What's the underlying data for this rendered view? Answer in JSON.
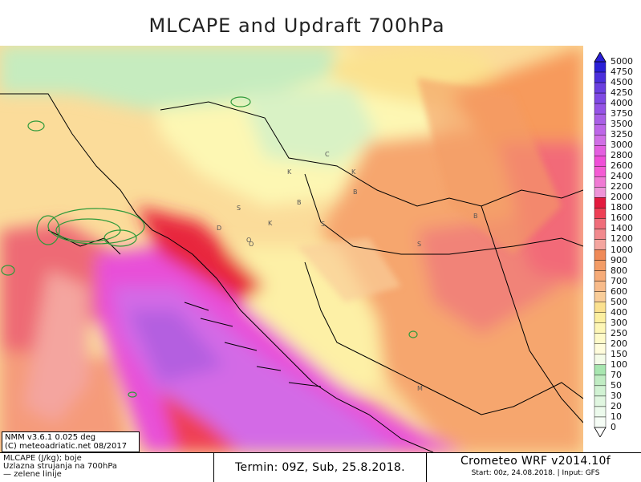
{
  "title": "MLCAPE and Updraft 700hPa",
  "model_box": {
    "line1": "NMM v3.6.1 0.025 deg",
    "line2": "(C) meteoadriatic.net 08/2017"
  },
  "legend_text": {
    "line1": "MLCAPE (J/kg); boje",
    "line2": "Uzlazna strujanja na 700hPa",
    "line3": "— zelene linije"
  },
  "termin": "Termin: 09Z, Sub, 25.8.2018.",
  "brand": {
    "name": "Crometeo WRF v2014.10f",
    "start": "Start: 00z, 24.08.2018. | Input: GFS"
  },
  "colorbar": {
    "labels": [
      "5000",
      "4750",
      "4500",
      "4250",
      "4000",
      "3750",
      "3500",
      "3250",
      "3000",
      "2800",
      "2600",
      "2400",
      "2200",
      "2000",
      "1800",
      "1600",
      "1400",
      "1200",
      "1000",
      "900",
      "800",
      "700",
      "600",
      "500",
      "400",
      "300",
      "250",
      "200",
      "150",
      "100",
      "70",
      "50",
      "30",
      "20",
      "10",
      "0"
    ],
    "colors": [
      "#2a1fd6",
      "#4b2fdc",
      "#6a3fe0",
      "#7f49e4",
      "#9553e6",
      "#a95fe6",
      "#bd66e8",
      "#d06fe6",
      "#e35fe0",
      "#ef4fd8",
      "#f45bd4",
      "#f07ad4",
      "#ee94d8",
      "#e31a3e",
      "#ee3f55",
      "#f06d7a",
      "#f28a8e",
      "#f4a59f",
      "#f08a58",
      "#f39c66",
      "#f6ab78",
      "#f8bb8a",
      "#f9cd99",
      "#fbe18f",
      "#fcefa0",
      "#fdf6b6",
      "#fefac9",
      "#fffcdc",
      "#f4fbe8",
      "#a8e6b0",
      "#c0ecc3",
      "#d1f2d3",
      "#e0f6e0",
      "#ecfaec",
      "#f6fdf6"
    ]
  },
  "map_letters": [
    "C",
    "K",
    "B",
    "K",
    "B",
    "O",
    "D",
    "S",
    "S",
    "K",
    "O",
    "S",
    "B",
    "M"
  ]
}
